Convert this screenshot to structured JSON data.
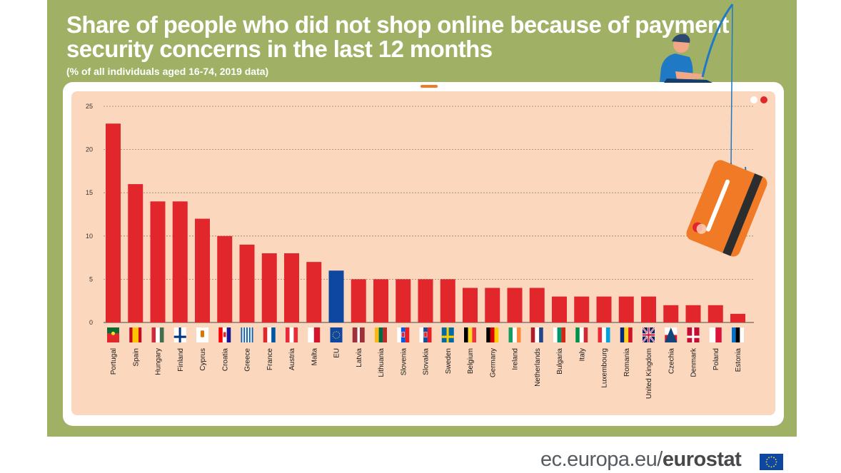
{
  "header": {
    "title": "Share of people who did not shop online because of payment security concerns in the last 12 months",
    "subtitle": "(% of all individuals aged 16-74, 2019 data)"
  },
  "footer": {
    "url_prefix": "ec.europa.eu/",
    "url_brand": "eurostat"
  },
  "colors": {
    "background_panel": "#a0b165",
    "chart_area": "#fad7bd",
    "bar": "#e1262c",
    "bar_eu": "#0e47a1",
    "accent_orange": "#f07a26"
  },
  "chart_data": {
    "type": "bar",
    "title": "Share of people who did not shop online because of payment security concerns in the last 12 months",
    "subtitle": "(% of all individuals aged 16-74, 2019 data)",
    "xlabel": "",
    "ylabel": "",
    "ylim": [
      0,
      25
    ],
    "yticks": [
      0,
      5,
      10,
      15,
      20,
      25
    ],
    "grid": true,
    "highlight": "EU",
    "categories": [
      "Portugal",
      "Spain",
      "Hungary",
      "Finland",
      "Cyprus",
      "Croatia",
      "Greece",
      "France",
      "Austria",
      "Malta",
      "EU",
      "Latvia",
      "Lithuania",
      "Slovenia",
      "Slovakia",
      "Sweden",
      "Belgium",
      "Germany",
      "Ireland",
      "Netherlands",
      "Bulgaria",
      "Italy",
      "Luxembourg",
      "Romania",
      "United Kingdom",
      "Czechia",
      "Denmark",
      "Poland",
      "Estonia"
    ],
    "values": [
      23,
      16,
      14,
      14,
      12,
      10,
      9,
      8,
      8,
      7,
      6,
      5,
      5,
      5,
      5,
      5,
      4,
      4,
      4,
      4,
      3,
      3,
      3,
      3,
      3,
      2,
      2,
      2,
      1
    ]
  },
  "flags": {
    "Portugal": "portugal-flag-icon",
    "Spain": "spain-flag-icon",
    "Hungary": "hungary-flag-icon",
    "Finland": "finland-flag-icon",
    "Cyprus": "cyprus-flag-icon",
    "Croatia": "croatia-flag-icon",
    "Greece": "greece-flag-icon",
    "France": "france-flag-icon",
    "Austria": "austria-flag-icon",
    "Malta": "malta-flag-icon",
    "EU": "eu-flag-icon",
    "Latvia": "latvia-flag-icon",
    "Lithuania": "lithuania-flag-icon",
    "Slovenia": "slovenia-flag-icon",
    "Slovakia": "slovakia-flag-icon",
    "Sweden": "sweden-flag-icon",
    "Belgium": "belgium-flag-icon",
    "Germany": "germany-flag-icon",
    "Ireland": "ireland-flag-icon",
    "Netherlands": "netherlands-flag-icon",
    "Bulgaria": "bulgaria-flag-icon",
    "Italy": "italy-flag-icon",
    "Luxembourg": "luxembourg-flag-icon",
    "Romania": "romania-flag-icon",
    "United Kingdom": "united-kingdom-flag-icon",
    "Czechia": "czechia-flag-icon",
    "Denmark": "denmark-flag-icon",
    "Poland": "poland-flag-icon",
    "Estonia": "estonia-flag-icon"
  }
}
